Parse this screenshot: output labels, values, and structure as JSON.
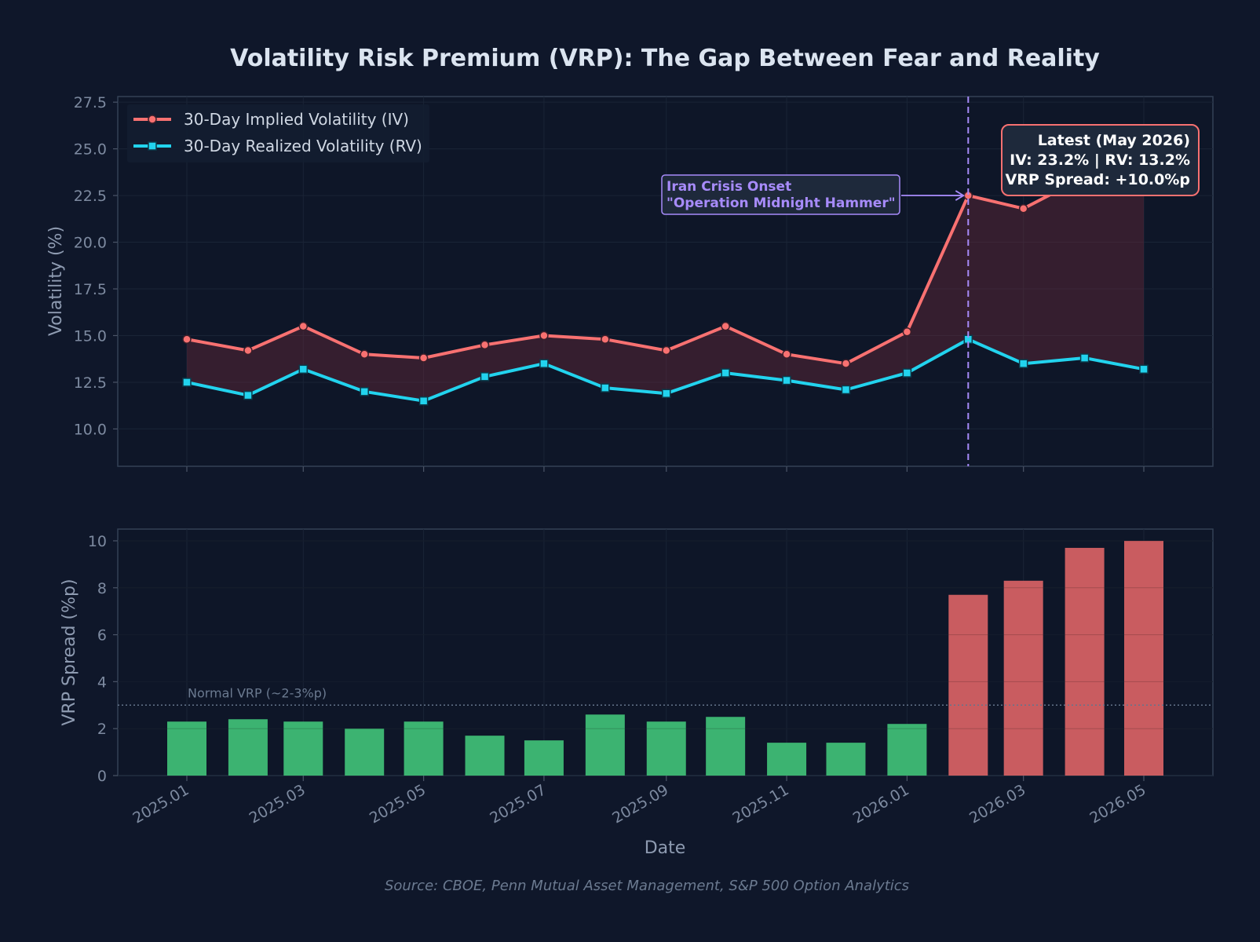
{
  "chart_data": [
    {
      "type": "line",
      "title": "Volatility Risk Premium (VRP): The Gap Between Fear and Reality",
      "ylabel": "Volatility (%)",
      "ylim": [
        8.0,
        27.8
      ],
      "yticks": [
        "10.0",
        "12.5",
        "15.0",
        "17.5",
        "20.0",
        "22.5",
        "25.0",
        "27.5"
      ],
      "x": [
        "2025-01",
        "2025-02",
        "2025-03",
        "2025-04",
        "2025-05",
        "2025-06",
        "2025-07",
        "2025-08",
        "2025-09",
        "2025-10",
        "2025-11",
        "2025-12",
        "2026-01",
        "2026-02",
        "2026-03",
        "2026-04",
        "2026-05"
      ],
      "series": [
        {
          "name": "30-Day Implied Volatility (IV)",
          "color": "#f87171",
          "marker": "circle",
          "values": [
            14.8,
            14.2,
            15.5,
            14.0,
            13.8,
            14.5,
            15.0,
            14.8,
            14.2,
            15.5,
            14.0,
            13.5,
            15.2,
            22.5,
            21.8,
            23.5,
            23.2
          ]
        },
        {
          "name": "30-Day Realized Volatility (RV)",
          "color": "#22d3ee",
          "marker": "square",
          "values": [
            12.5,
            11.8,
            13.2,
            12.0,
            11.5,
            12.8,
            13.5,
            12.2,
            11.9,
            13.0,
            12.6,
            12.1,
            13.0,
            14.8,
            13.5,
            13.8,
            13.2
          ]
        }
      ],
      "legend": "top-left",
      "grid": true,
      "event_line": {
        "x": "2026-02",
        "color": "#a78bfa"
      },
      "annotation": {
        "line1": "Iran Crisis Onset",
        "line2": "\"Operation Midnight Hammer\"",
        "x": "2026-02",
        "y": 22.5
      },
      "latest_box": {
        "line1": "Latest (May 2026)",
        "line2": "IV: 23.2%  |  RV: 13.2%",
        "line3": "VRP Spread: +10.0%p"
      }
    },
    {
      "type": "bar",
      "xlabel": "Date",
      "ylabel": "VRP Spread (%p)",
      "ylim": [
        0,
        10.5
      ],
      "yticks": [
        "0",
        "2",
        "4",
        "6",
        "8",
        "10"
      ],
      "x": [
        "2025-01",
        "2025-02",
        "2025-03",
        "2025-04",
        "2025-05",
        "2025-06",
        "2025-07",
        "2025-08",
        "2025-09",
        "2025-10",
        "2025-11",
        "2025-12",
        "2026-01",
        "2026-02",
        "2026-03",
        "2026-04",
        "2026-05"
      ],
      "values": [
        2.3,
        2.4,
        2.3,
        2.0,
        2.3,
        1.7,
        1.5,
        2.6,
        2.3,
        2.5,
        1.4,
        1.4,
        2.2,
        7.7,
        8.3,
        9.7,
        10.0
      ],
      "colors": {
        "normal": "#3cb371",
        "elevated": "#c95c60"
      },
      "threshold": 3,
      "reference_line": {
        "y": 3,
        "label": "Normal VRP (~2-3%p)"
      },
      "xticks": [
        {
          "label": "2025.01",
          "x": "2025-01"
        },
        {
          "label": "2025.03",
          "x": "2025-03"
        },
        {
          "label": "2025.05",
          "x": "2025-05"
        },
        {
          "label": "2025.07",
          "x": "2025-07"
        },
        {
          "label": "2025.09",
          "x": "2025-09"
        },
        {
          "label": "2025.11",
          "x": "2025-11"
        },
        {
          "label": "2026.01",
          "x": "2026-01"
        },
        {
          "label": "2026.03",
          "x": "2026-03"
        },
        {
          "label": "2026.05",
          "x": "2026-05"
        }
      ]
    }
  ],
  "source": "Source: CBOE, Penn Mutual Asset Management, S&P 500 Option Analytics"
}
